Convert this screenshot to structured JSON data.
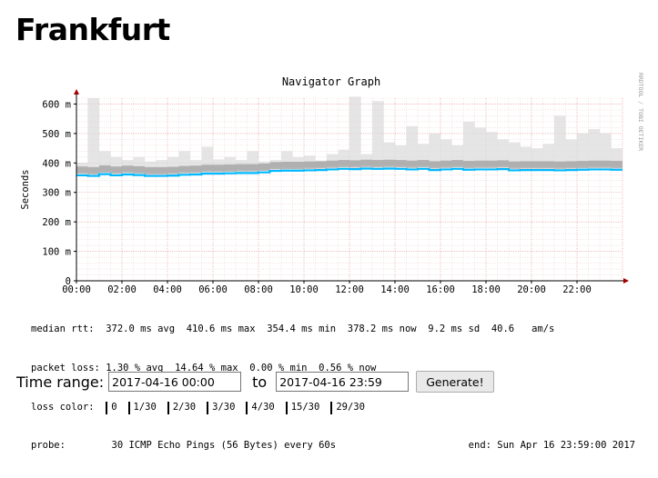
{
  "page": {
    "title": "Frankfurt"
  },
  "chart_data": {
    "type": "area",
    "title": "Navigator Graph",
    "ylabel": "Seconds",
    "vertical_label": "RRDTOOL / TOBI OETIKER",
    "x_ticks": [
      "00:00",
      "02:00",
      "04:00",
      "06:00",
      "08:00",
      "10:00",
      "12:00",
      "14:00",
      "16:00",
      "18:00",
      "20:00",
      "22:00"
    ],
    "y_ticks": [
      "0",
      "100 m",
      "200 m",
      "300 m",
      "400 m",
      "500 m",
      "600 m"
    ],
    "ylim": [
      0,
      0.62
    ],
    "x_range_hours": [
      0,
      24
    ],
    "grid": true,
    "series": [
      {
        "name": "median rtt",
        "x_hours": [
          0,
          0.5,
          1,
          1.5,
          2,
          2.5,
          3,
          3.5,
          4,
          4.5,
          5,
          5.5,
          6,
          6.5,
          7,
          7.5,
          8,
          8.5,
          9,
          9.5,
          10,
          10.5,
          11,
          11.5,
          12,
          12.5,
          13,
          13.5,
          14,
          14.5,
          15,
          15.5,
          16,
          16.5,
          17,
          17.5,
          18,
          18.5,
          19,
          19.5,
          20,
          20.5,
          21,
          21.5,
          22,
          22.5,
          23,
          23.5,
          24
        ],
        "values": [
          0.358,
          0.356,
          0.362,
          0.358,
          0.361,
          0.359,
          0.356,
          0.356,
          0.357,
          0.36,
          0.361,
          0.364,
          0.364,
          0.365,
          0.366,
          0.366,
          0.368,
          0.373,
          0.374,
          0.374,
          0.375,
          0.376,
          0.378,
          0.38,
          0.379,
          0.381,
          0.38,
          0.381,
          0.38,
          0.378,
          0.38,
          0.376,
          0.378,
          0.38,
          0.377,
          0.378,
          0.378,
          0.379,
          0.375,
          0.376,
          0.376,
          0.376,
          0.375,
          0.376,
          0.377,
          0.378,
          0.378,
          0.377,
          0.378
        ],
        "spread_max": [
          0.4,
          0.62,
          0.44,
          0.42,
          0.41,
          0.42,
          0.405,
          0.41,
          0.42,
          0.44,
          0.41,
          0.455,
          0.412,
          0.42,
          0.41,
          0.44,
          0.405,
          0.41,
          0.44,
          0.42,
          0.425,
          0.408,
          0.43,
          0.445,
          0.625,
          0.43,
          0.61,
          0.47,
          0.46,
          0.525,
          0.465,
          0.5,
          0.48,
          0.46,
          0.54,
          0.52,
          0.505,
          0.48,
          0.47,
          0.455,
          0.45,
          0.465,
          0.56,
          0.48,
          0.5,
          0.515,
          0.5,
          0.45,
          0.455
        ]
      }
    ],
    "legend": {
      "median_rtt": {
        "label": "median rtt:",
        "avg": "372.0 ms avg",
        "max": "410.6 ms max",
        "min": "354.4 ms min",
        "now": "378.2 ms now",
        "sd": "9.2 ms sd",
        "amps": "40.6",
        "amps_unit": "am/s"
      },
      "packet_loss": {
        "label": "packet loss:",
        "avg": "1.30 % avg",
        "max": "14.64 % max",
        "min": "0.00 % min",
        "now": "0.56 % now"
      },
      "loss_color": {
        "label": "loss color:",
        "items": [
          {
            "label": "0",
            "color": "#26ff00"
          },
          {
            "label": "1/30",
            "color": "#00b8ff"
          },
          {
            "label": "2/30",
            "color": "#0059ff"
          },
          {
            "label": "3/30",
            "color": "#5e00ff"
          },
          {
            "label": "4/30",
            "color": "#7e00ff"
          },
          {
            "label": "15/30",
            "color": "#dd00ff"
          },
          {
            "label": "29/30",
            "color": "#ff0000"
          }
        ]
      },
      "probe": {
        "label": "probe:",
        "text": "30 ICMP Echo Pings (56 Bytes) every 60s"
      },
      "end": "end: Sun Apr 16 23:59:00 2017"
    }
  },
  "form": {
    "time_range_label": "Time range:",
    "start_value": "2017-04-16 00:00",
    "to_label": "to",
    "end_value": "2017-04-16 23:59",
    "generate_label": "Generate!"
  }
}
